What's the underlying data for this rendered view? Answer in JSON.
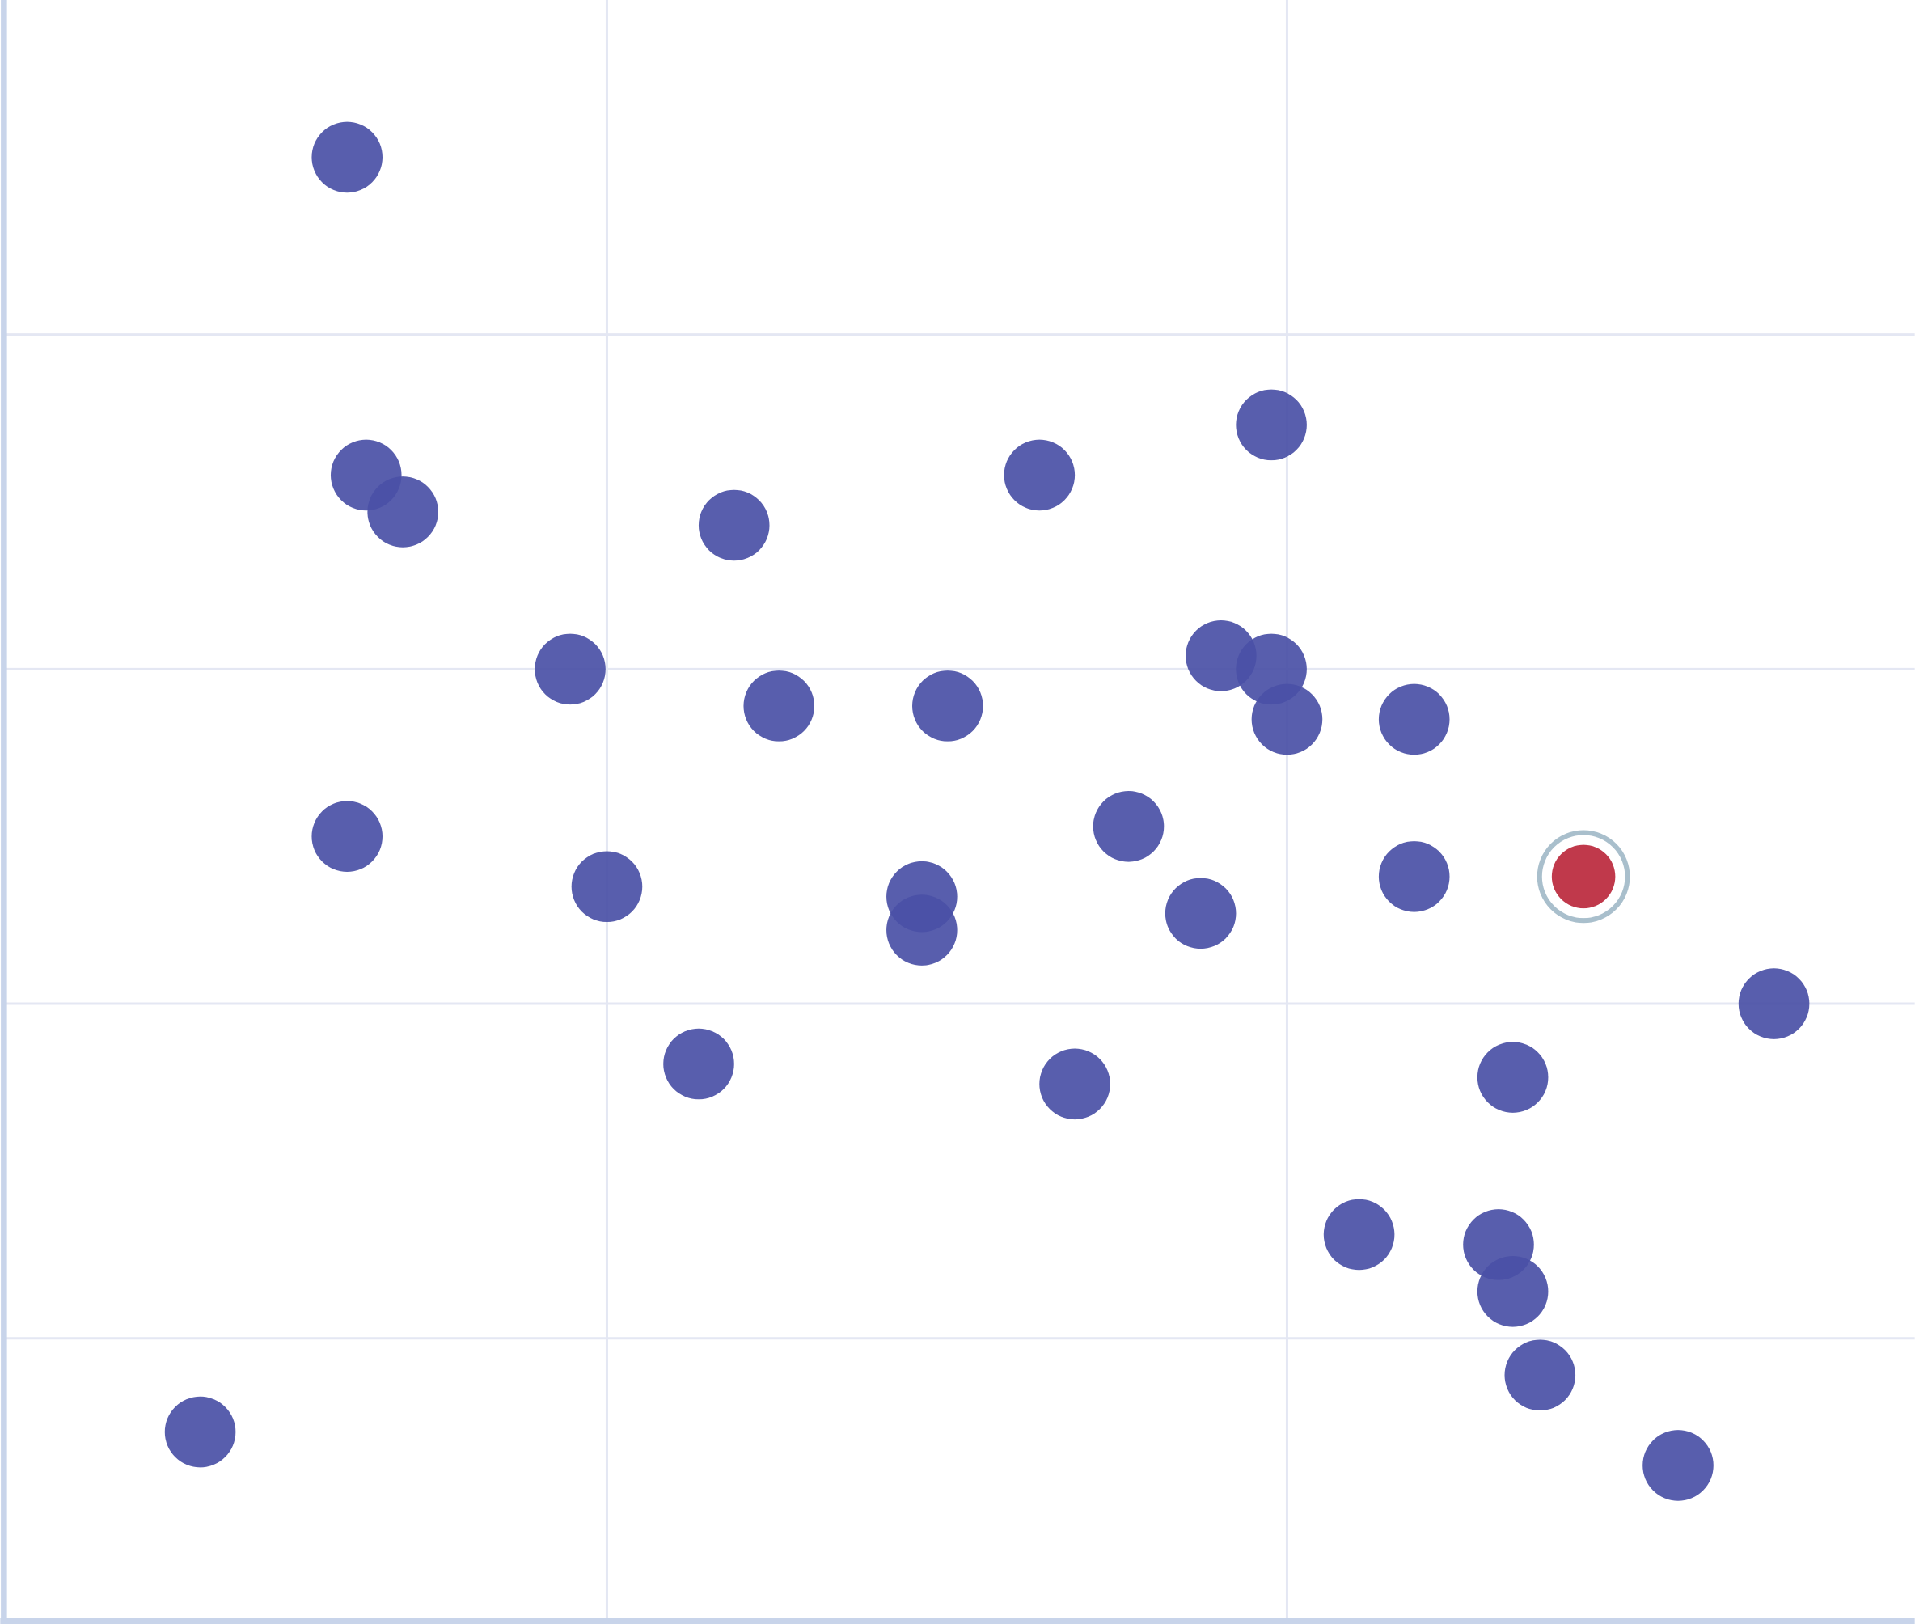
{
  "chart_data": {
    "type": "scatter",
    "title": "",
    "xlabel": "",
    "ylabel": "",
    "xlim": [
      0.117,
      2.923
    ],
    "ylim": [
      0.157,
      5.0
    ],
    "x_gridlines": [
      1,
      2
    ],
    "y_gridlines": [
      1,
      2,
      3,
      4
    ],
    "grid": true,
    "legend": "none",
    "colors": {
      "point": "#4a50a6",
      "highlight": "#c0394b",
      "highlight_ring": "#a9bfcc",
      "axis": "#c8d4ea",
      "grid": "#e4e7f3"
    },
    "points": [
      {
        "x": 0.618,
        "y": 4.53
      },
      {
        "x": 0.646,
        "y": 3.58
      },
      {
        "x": 0.7,
        "y": 3.47
      },
      {
        "x": 1.187,
        "y": 3.43
      },
      {
        "x": 1.636,
        "y": 3.58
      },
      {
        "x": 1.977,
        "y": 3.73
      },
      {
        "x": 0.946,
        "y": 3.0
      },
      {
        "x": 1.253,
        "y": 2.89
      },
      {
        "x": 1.501,
        "y": 2.89
      },
      {
        "x": 1.903,
        "y": 3.04
      },
      {
        "x": 1.977,
        "y": 3.0
      },
      {
        "x": 2.0,
        "y": 2.85
      },
      {
        "x": 2.187,
        "y": 2.85
      },
      {
        "x": 0.618,
        "y": 2.5
      },
      {
        "x": 1.0,
        "y": 2.35
      },
      {
        "x": 1.463,
        "y": 2.32
      },
      {
        "x": 1.463,
        "y": 2.22
      },
      {
        "x": 1.767,
        "y": 2.53
      },
      {
        "x": 1.873,
        "y": 2.27
      },
      {
        "x": 2.187,
        "y": 2.38
      },
      {
        "x": 2.436,
        "y": 2.38,
        "highlighted": true
      },
      {
        "x": 2.716,
        "y": 2.0
      },
      {
        "x": 2.332,
        "y": 1.78
      },
      {
        "x": 1.135,
        "y": 1.82
      },
      {
        "x": 1.688,
        "y": 1.76
      },
      {
        "x": 2.106,
        "y": 1.31
      },
      {
        "x": 2.311,
        "y": 1.28
      },
      {
        "x": 2.332,
        "y": 1.14
      },
      {
        "x": 2.372,
        "y": 0.89
      },
      {
        "x": 2.575,
        "y": 0.62
      },
      {
        "x": 0.402,
        "y": 0.72
      }
    ]
  }
}
